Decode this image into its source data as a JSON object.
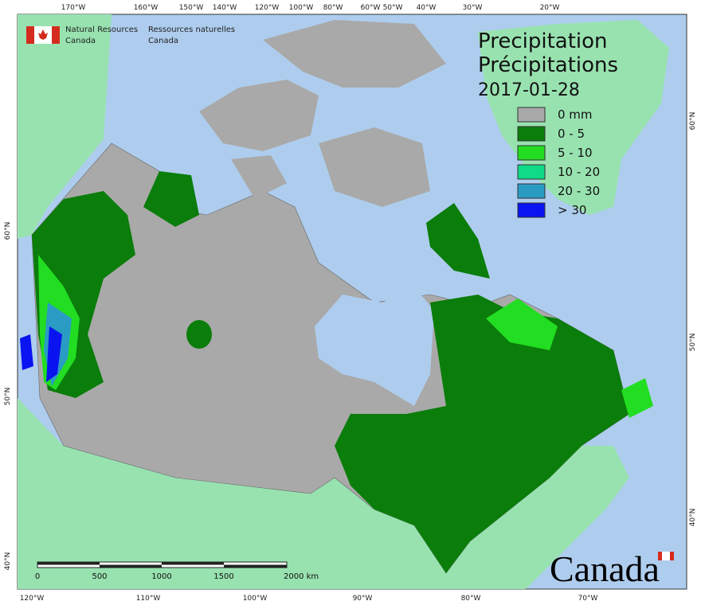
{
  "header": {
    "agency_en": [
      "Natural Resources",
      "Canada"
    ],
    "agency_fr": [
      "Ressources naturelles",
      "Canada"
    ]
  },
  "title": {
    "en": "Precipitation",
    "fr": "Précipitations",
    "date": "2017-01-28"
  },
  "legend": [
    {
      "label": "0 mm",
      "color": "#a9a9a9"
    },
    {
      "label": "0 - 5",
      "color": "#0a7d0a"
    },
    {
      "label": "5 - 10",
      "color": "#22dd22"
    },
    {
      "label": "10 - 20",
      "color": "#10d988"
    },
    {
      "label": "20 - 30",
      "color": "#2a9cc4"
    },
    {
      "label": "> 30",
      "color": "#0a14f0"
    }
  ],
  "graticule": {
    "top": [
      "170°W",
      "160°W",
      "150°W",
      "140°W",
      "120°W",
      "100°W",
      "80°W",
      "60°W",
      "50°W",
      "40°W",
      "30°W",
      "20°W"
    ],
    "bottom": [
      "120°W",
      "110°W",
      "100°W",
      "90°W",
      "80°W",
      "70°W"
    ],
    "left": [
      "60°N",
      "50°N",
      "40°N"
    ],
    "right": [
      "60°N",
      "50°N",
      "40°N"
    ]
  },
  "scale_bar": [
    "0",
    "500",
    "1000",
    "1500",
    "2000 km"
  ],
  "wordmark": "Canada"
}
